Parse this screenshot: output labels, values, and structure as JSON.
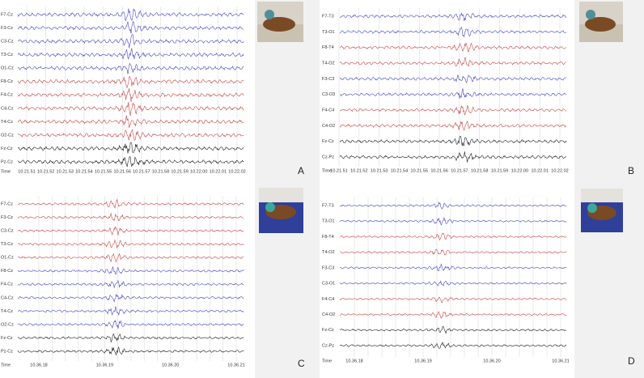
{
  "panels": [
    {
      "letter": "A",
      "time_label": "Time",
      "channels": [
        {
          "label": "F7-Cz",
          "color": "#4a4ac8"
        },
        {
          "label": "F3-Cz",
          "color": "#4a4ac8"
        },
        {
          "label": "C3-Cz",
          "color": "#4a4ac8"
        },
        {
          "label": "T3-Cz",
          "color": "#4a4ac8"
        },
        {
          "label": "O1-Cz",
          "color": "#4a4ac8"
        },
        {
          "label": "F8-Cz",
          "color": "#c84a4a"
        },
        {
          "label": "F4-Cz",
          "color": "#c84a4a"
        },
        {
          "label": "C4-Cz",
          "color": "#c84a4a"
        },
        {
          "label": "T4-Cz",
          "color": "#c84a4a"
        },
        {
          "label": "O2-Cz",
          "color": "#c84a4a"
        },
        {
          "label": "Fz-Cz",
          "color": "#222222"
        },
        {
          "label": "Pz-Cz",
          "color": "#222222"
        }
      ],
      "times": [
        "10.21.51",
        "10.21.52",
        "10.21.53",
        "10.21.54",
        "10.21.55",
        "10.21.56",
        "10.21.57",
        "10.21.58",
        "10.21.59",
        "10.22.00",
        "10.22.01",
        "10.22.02"
      ]
    },
    {
      "letter": "B",
      "time_label": "Time",
      "channels": [
        {
          "label": "F7-T3",
          "color": "#4a4ac8"
        },
        {
          "label": "T3-O1",
          "color": "#4a4ac8"
        },
        {
          "label": "F8-T4",
          "color": "#c84a4a"
        },
        {
          "label": "T4-O2",
          "color": "#c84a4a"
        },
        {
          "label": "F3-C3",
          "color": "#4a4ac8"
        },
        {
          "label": "C3-O3",
          "color": "#4a4ac8"
        },
        {
          "label": "F4-C4",
          "color": "#c84a4a"
        },
        {
          "label": "C4-O2",
          "color": "#c84a4a"
        },
        {
          "label": "Fz-Cz",
          "color": "#222222"
        },
        {
          "label": "Cz-Pz",
          "color": "#222222"
        }
      ],
      "times": [
        "10.21.51",
        "10.21.52",
        "10.21.53",
        "10.21.54",
        "10.21.55",
        "10.21.56",
        "10.21.57",
        "10.21.58",
        "10.21.59",
        "10.22.00",
        "10.22.01",
        "10.22.02"
      ]
    },
    {
      "letter": "C",
      "time_label": "Time",
      "channels": [
        {
          "label": "F7-Cz",
          "color": "#c84a4a"
        },
        {
          "label": "F3-Cz",
          "color": "#c84a4a"
        },
        {
          "label": "C3-Cz",
          "color": "#c84a4a"
        },
        {
          "label": "T3-Cz",
          "color": "#c84a4a"
        },
        {
          "label": "O1-Cz",
          "color": "#c84a4a"
        },
        {
          "label": "F8-Cz",
          "color": "#4a4ac8"
        },
        {
          "label": "F4-Cz",
          "color": "#4a4ac8"
        },
        {
          "label": "C4-Cz",
          "color": "#4a4ac8"
        },
        {
          "label": "T4-Cz",
          "color": "#4a4ac8"
        },
        {
          "label": "O2-Cz",
          "color": "#4a4ac8"
        },
        {
          "label": "Fz-Cz",
          "color": "#222222"
        },
        {
          "label": "Pz-Cz",
          "color": "#222222"
        }
      ],
      "times": [
        "10.36.18",
        "10.36.19",
        "10.36.20",
        "10.36.21"
      ]
    },
    {
      "letter": "D",
      "time_label": "Time",
      "channels": [
        {
          "label": "F7-T3",
          "color": "#4a4ac8"
        },
        {
          "label": "T3-O1",
          "color": "#4a4ac8"
        },
        {
          "label": "F8-T4",
          "color": "#c84a4a"
        },
        {
          "label": "T4-O2",
          "color": "#c84a4a"
        },
        {
          "label": "F3-C3",
          "color": "#4a4ac8"
        },
        {
          "label": "C3-O1",
          "color": "#4a4ac8"
        },
        {
          "label": "F4-C4",
          "color": "#c84a4a"
        },
        {
          "label": "C4-O2",
          "color": "#c84a4a"
        },
        {
          "label": "Fz-Cz",
          "color": "#222222"
        },
        {
          "label": "Cz-Pz",
          "color": "#222222"
        }
      ],
      "times": [
        "10.36.18",
        "10.36.19",
        "10.36.20",
        "10.36.21"
      ]
    }
  ]
}
